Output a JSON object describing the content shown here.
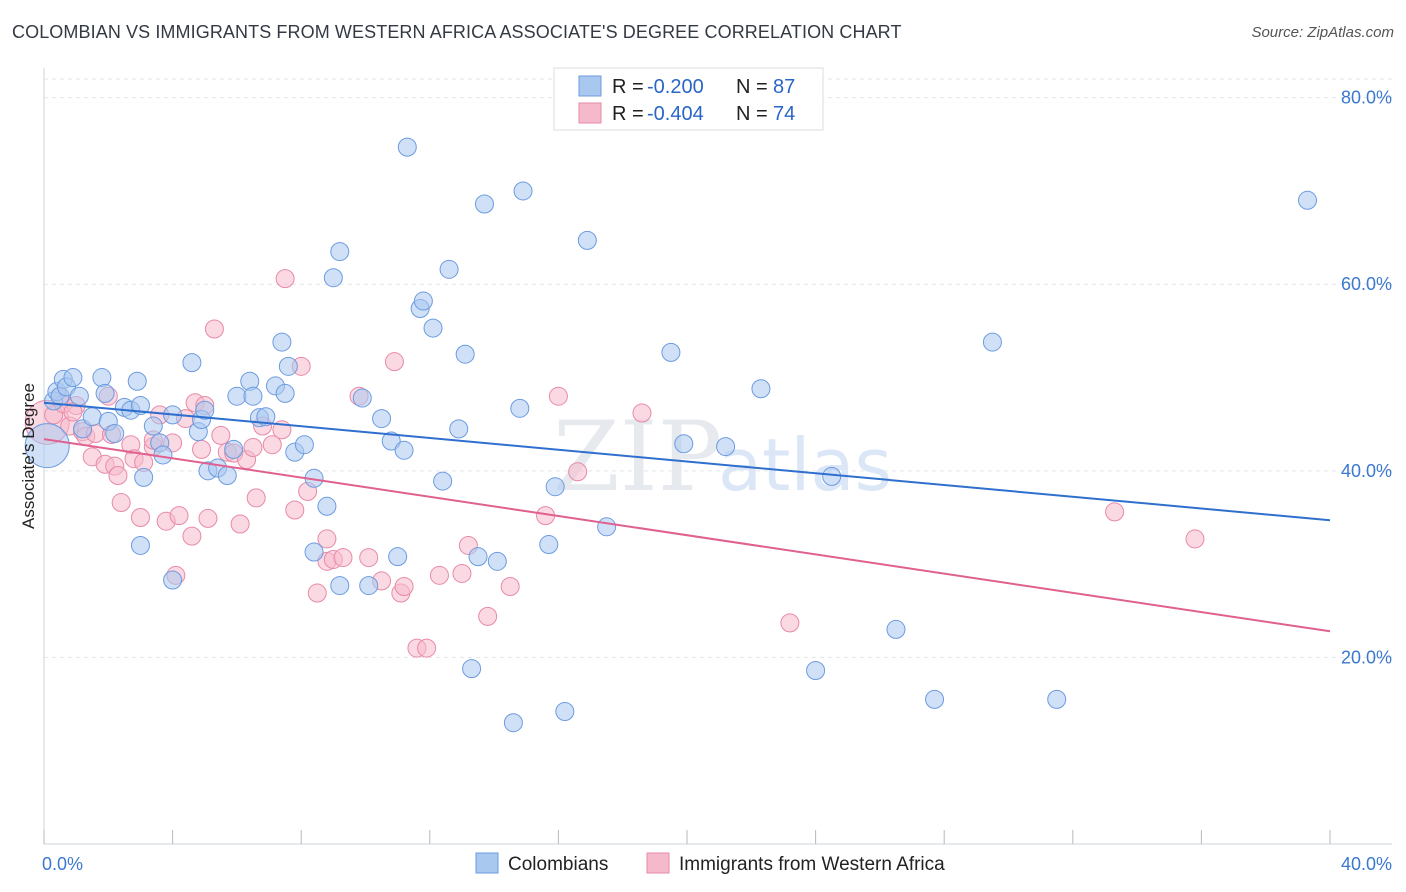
{
  "header": {
    "title": "COLOMBIAN VS IMMIGRANTS FROM WESTERN AFRICA ASSOCIATE'S DEGREE CORRELATION CHART",
    "source": "Source: ZipAtlas.com"
  },
  "watermark": {
    "zip": "ZIP",
    "atlas": "atlas"
  },
  "legend": {
    "items": [
      {
        "r_label": "R = ",
        "r_value": "-0.200",
        "n_label": "N = ",
        "n_value": "87"
      },
      {
        "r_label": "R = ",
        "r_value": "-0.404",
        "n_label": "N = ",
        "n_value": "74"
      }
    ]
  },
  "bottom_legend": {
    "colombians": "Colombians",
    "immigrants": "Immigrants from Western Africa"
  },
  "colors": {
    "blue_fill": "#a9c8f0",
    "blue_stroke": "#6c9be0",
    "blue_line": "#2f6fce",
    "pink_fill": "#f5b9cc",
    "pink_stroke": "#e88aa8",
    "pink_line": "#e0608f",
    "tick_text": "#3b78d0"
  },
  "chart_data": {
    "type": "scatter",
    "title": "COLOMBIAN VS IMMIGRANTS FROM WESTERN AFRICA ASSOCIATE'S DEGREE CORRELATION CHART",
    "xlabel": "",
    "ylabel": "Associate's Degree",
    "xlim": [
      0,
      40
    ],
    "ylim": [
      0,
      82
    ],
    "x_tick_labels": [
      "0.0%",
      "40.0%"
    ],
    "y_ticks": [
      20,
      40,
      60,
      80
    ],
    "y_tick_labels": [
      "20.0%",
      "40.0%",
      "60.0%",
      "80.0%"
    ],
    "grid": true,
    "legend_position": "top-center",
    "series": [
      {
        "name": "Colombians",
        "color": "#a9c8f0",
        "r": -0.2,
        "n": 87,
        "trend": {
          "x": [
            0,
            40
          ],
          "y": [
            47.3,
            34.7
          ]
        },
        "points": [
          [
            0.1,
            42.7
          ],
          [
            0.3,
            47.5
          ],
          [
            0.4,
            48.5
          ],
          [
            0.5,
            48.0
          ],
          [
            0.6,
            49.8
          ],
          [
            0.7,
            49.0
          ],
          [
            0.9,
            50.0
          ],
          [
            1.1,
            48.0
          ],
          [
            1.2,
            44.5
          ],
          [
            1.5,
            45.8
          ],
          [
            1.8,
            50.0
          ],
          [
            1.9,
            48.3
          ],
          [
            2.0,
            45.3
          ],
          [
            2.2,
            44.0
          ],
          [
            2.5,
            46.8
          ],
          [
            2.7,
            46.5
          ],
          [
            2.9,
            49.6
          ],
          [
            3.0,
            47.0
          ],
          [
            3.1,
            39.3
          ],
          [
            3.4,
            44.8
          ],
          [
            3.6,
            43.0
          ],
          [
            3.7,
            41.7
          ],
          [
            4.0,
            46.0
          ],
          [
            4.0,
            28.3
          ],
          [
            4.6,
            51.6
          ],
          [
            4.8,
            44.2
          ],
          [
            4.9,
            45.5
          ],
          [
            5.0,
            46.5
          ],
          [
            5.1,
            40.0
          ],
          [
            5.4,
            40.3
          ],
          [
            5.7,
            39.5
          ],
          [
            6.0,
            48.0
          ],
          [
            6.4,
            49.6
          ],
          [
            6.5,
            48.0
          ],
          [
            6.7,
            45.7
          ],
          [
            6.9,
            45.8
          ],
          [
            7.2,
            49.1
          ],
          [
            7.4,
            53.8
          ],
          [
            7.5,
            48.3
          ],
          [
            7.6,
            51.2
          ],
          [
            7.8,
            42.0
          ],
          [
            8.1,
            42.8
          ],
          [
            8.4,
            39.2
          ],
          [
            8.8,
            36.2
          ],
          [
            9.2,
            63.5
          ],
          [
            9.0,
            60.7
          ],
          [
            9.9,
            47.8
          ],
          [
            10.5,
            45.6
          ],
          [
            10.8,
            43.2
          ],
          [
            11.2,
            42.2
          ],
          [
            11.0,
            30.8
          ],
          [
            11.7,
            57.4
          ],
          [
            11.8,
            58.2
          ],
          [
            12.1,
            55.3
          ],
          [
            12.4,
            38.9
          ],
          [
            12.6,
            61.6
          ],
          [
            12.9,
            44.5
          ],
          [
            13.1,
            52.5
          ],
          [
            13.3,
            18.8
          ],
          [
            13.5,
            30.8
          ],
          [
            13.7,
            68.6
          ],
          [
            14.1,
            30.3
          ],
          [
            14.8,
            46.7
          ],
          [
            14.9,
            70.0
          ],
          [
            15.7,
            32.1
          ],
          [
            15.9,
            38.3
          ],
          [
            16.2,
            14.2
          ],
          [
            16.9,
            64.7
          ],
          [
            17.5,
            34.0
          ],
          [
            19.5,
            52.7
          ],
          [
            19.9,
            42.9
          ],
          [
            21.2,
            42.6
          ],
          [
            22.3,
            48.8
          ],
          [
            24.0,
            18.6
          ],
          [
            24.5,
            39.4
          ],
          [
            26.5,
            23.0
          ],
          [
            27.7,
            15.5
          ],
          [
            29.5,
            53.8
          ],
          [
            31.5,
            15.5
          ],
          [
            39.3,
            69.0
          ],
          [
            11.3,
            74.7
          ],
          [
            14.6,
            13.0
          ],
          [
            9.2,
            27.7
          ],
          [
            10.1,
            27.7
          ],
          [
            8.4,
            31.3
          ],
          [
            5.9,
            42.3
          ],
          [
            3.0,
            32.0
          ]
        ]
      },
      {
        "name": "Immigrants from Western Africa",
        "color": "#f5b9cc",
        "r": -0.404,
        "n": 74,
        "trend": {
          "x": [
            0,
            40
          ],
          "y": [
            43.4,
            22.8
          ]
        },
        "points": [
          [
            0.1,
            45.2
          ],
          [
            0.3,
            46.0
          ],
          [
            0.5,
            48.0
          ],
          [
            0.6,
            47.2
          ],
          [
            0.8,
            44.8
          ],
          [
            1.0,
            47.0
          ],
          [
            1.2,
            44.2
          ],
          [
            1.3,
            43.7
          ],
          [
            1.5,
            41.5
          ],
          [
            1.6,
            44.0
          ],
          [
            1.9,
            40.7
          ],
          [
            2.0,
            48.0
          ],
          [
            2.2,
            40.5
          ],
          [
            2.3,
            39.5
          ],
          [
            2.4,
            36.6
          ],
          [
            2.7,
            42.8
          ],
          [
            2.8,
            41.3
          ],
          [
            3.0,
            35.0
          ],
          [
            3.1,
            40.9
          ],
          [
            3.4,
            42.6
          ],
          [
            3.6,
            46.0
          ],
          [
            3.8,
            34.6
          ],
          [
            4.0,
            43.0
          ],
          [
            4.1,
            28.8
          ],
          [
            4.2,
            35.2
          ],
          [
            4.4,
            45.6
          ],
          [
            4.6,
            33.0
          ],
          [
            4.7,
            47.3
          ],
          [
            4.9,
            42.3
          ],
          [
            5.1,
            34.9
          ],
          [
            5.3,
            55.2
          ],
          [
            5.5,
            43.8
          ],
          [
            5.7,
            42.0
          ],
          [
            5.9,
            41.9
          ],
          [
            6.1,
            34.3
          ],
          [
            6.3,
            41.2
          ],
          [
            6.6,
            37.1
          ],
          [
            6.8,
            44.8
          ],
          [
            7.1,
            42.8
          ],
          [
            7.4,
            44.4
          ],
          [
            7.5,
            60.6
          ],
          [
            7.8,
            35.8
          ],
          [
            8.0,
            51.2
          ],
          [
            8.2,
            37.8
          ],
          [
            8.5,
            26.9
          ],
          [
            8.8,
            30.3
          ],
          [
            9.0,
            30.5
          ],
          [
            9.3,
            30.7
          ],
          [
            9.8,
            48.0
          ],
          [
            10.1,
            30.7
          ],
          [
            10.5,
            28.2
          ],
          [
            10.9,
            51.7
          ],
          [
            11.1,
            26.9
          ],
          [
            11.2,
            27.6
          ],
          [
            11.6,
            21.0
          ],
          [
            11.9,
            21.0
          ],
          [
            12.3,
            28.8
          ],
          [
            13.0,
            29.0
          ],
          [
            13.2,
            32.0
          ],
          [
            13.8,
            24.4
          ],
          [
            14.5,
            27.6
          ],
          [
            15.6,
            35.2
          ],
          [
            16.0,
            48.0
          ],
          [
            16.6,
            39.9
          ],
          [
            18.6,
            46.2
          ],
          [
            23.2,
            23.7
          ],
          [
            33.3,
            35.6
          ],
          [
            35.8,
            32.7
          ],
          [
            0.9,
            46.3
          ],
          [
            2.1,
            43.9
          ],
          [
            3.4,
            43.3
          ],
          [
            5.0,
            47.0
          ],
          [
            6.5,
            42.5
          ],
          [
            8.8,
            32.7
          ]
        ]
      }
    ]
  }
}
